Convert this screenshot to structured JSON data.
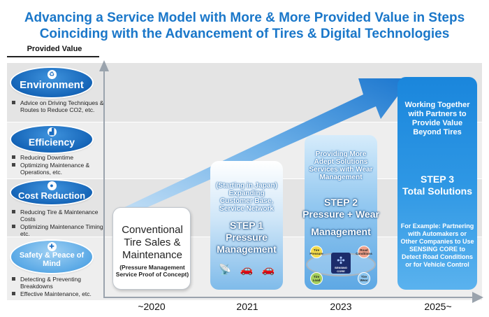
{
  "title": {
    "line1": "Advancing a Service Model with More & More Provided Value in Steps",
    "line2": "Coinciding with the Advancement of Tires & Digital Technologies"
  },
  "provided_value_label": "Provided Value",
  "categories": [
    {
      "name": "Environment",
      "icon": "leaf-icon",
      "bullets": [
        "Advice on Driving Techniques & Routes to Reduce CO2, etc."
      ]
    },
    {
      "name": "Efficiency",
      "icon": "chart-icon",
      "bullets": [
        "Reducing Downtime",
        "Optimizing Maintenance & Operations, etc."
      ]
    },
    {
      "name": "Cost Reduction",
      "icon": "coin-icon",
      "bullets": [
        "Reducing Tire & Maintenance Costs",
        "Optimizing Maintenance Timing, etc."
      ]
    },
    {
      "name": "Safety & Peace of Mind",
      "icon": "cross-icon",
      "bullets": [
        "Detecting & Preventing Breakdowns",
        "Effective Maintenance, etc."
      ]
    }
  ],
  "steps": {
    "s0": {
      "main": "Conventional Tire Sales & Maintenance",
      "sub": "(Pressure Management Service Proof of Concept)",
      "year": "~2020"
    },
    "s1": {
      "intro": "(Starting in Japan) Expanding Customer Base, Service Network",
      "step": "STEP 1",
      "name": "Pressure Management",
      "year": "2021"
    },
    "s2": {
      "intro": "Providing More Adept Solutions Services with Wear Management",
      "step": "STEP 2",
      "name": "Pressure + Wear",
      "name2": "Management",
      "nodes": [
        "Tire Pressure",
        "Road Conditions",
        "Tire Load",
        "Tire Wear"
      ],
      "core": "SENSING CORE",
      "year": "2023"
    },
    "s3": {
      "intro": "Working Together with Partners to Provide Value Beyond Tires",
      "step": "STEP 3",
      "name": "Total Solutions",
      "body": "For Example: Partnering with Automakers or Other Companies to Use SENSING CORE to Detect Road Conditions or for Vehicle Control",
      "year": "2025~"
    }
  },
  "colors": {
    "title": "#1a77c9",
    "accent": "#1565b8",
    "arrow": "#2a86d6"
  }
}
